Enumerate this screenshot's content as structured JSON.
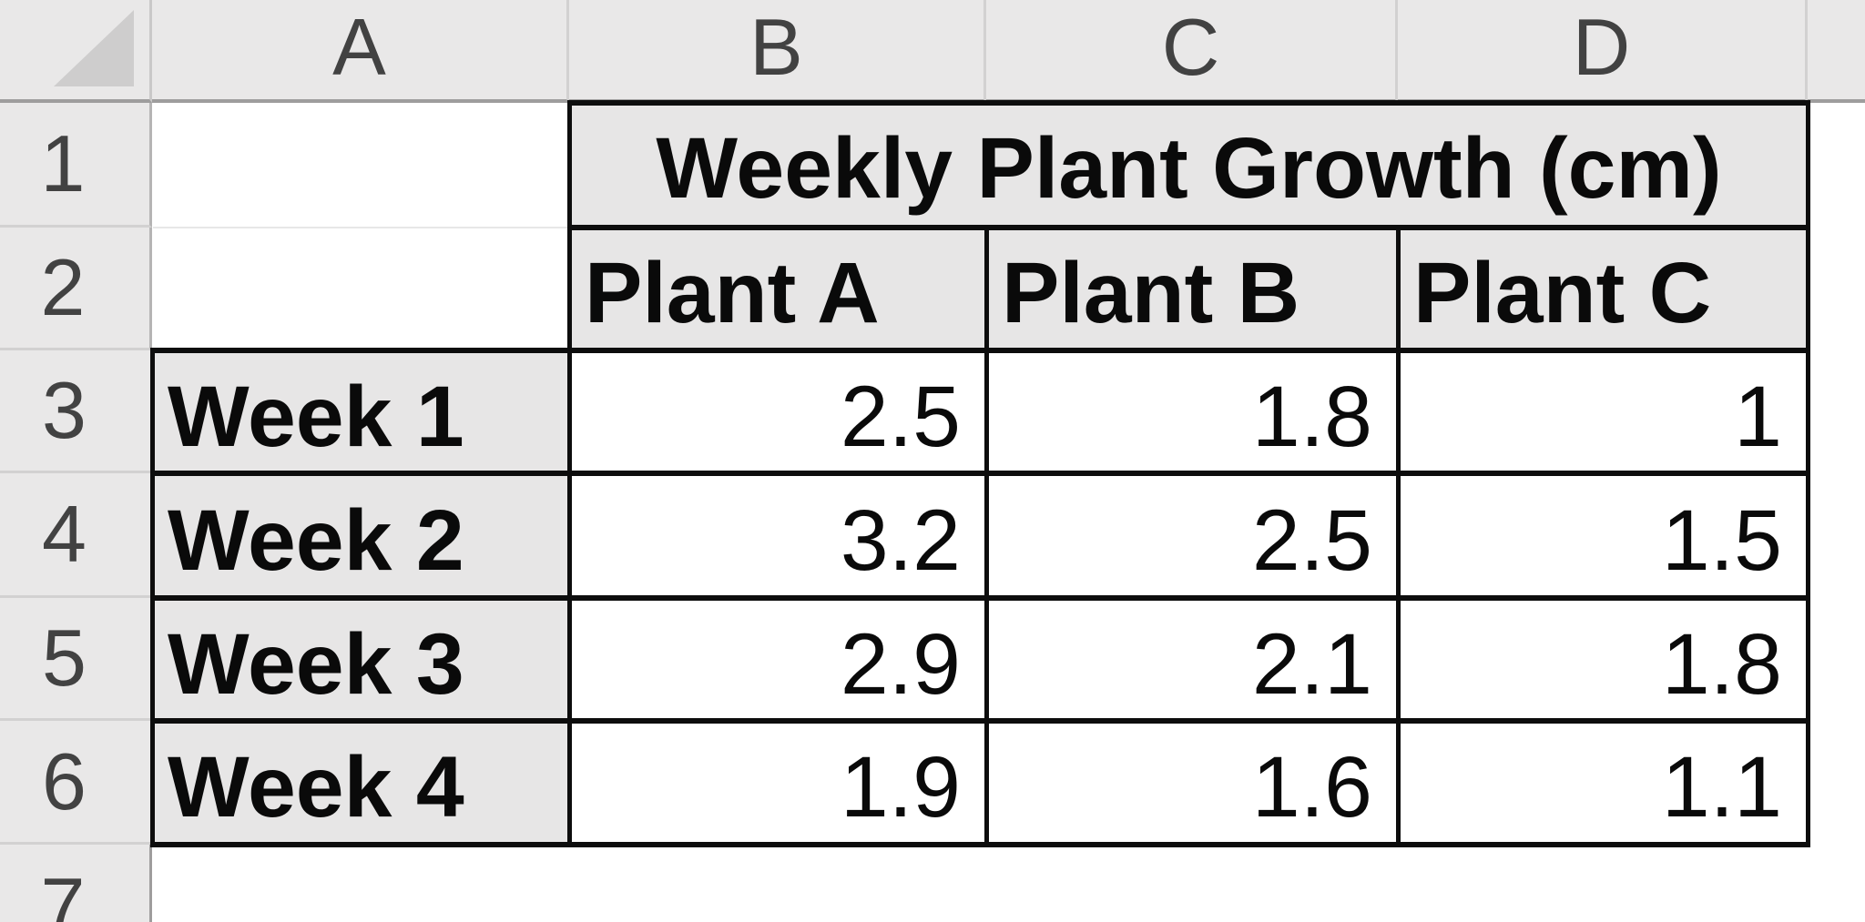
{
  "chrome": {
    "column_headers": [
      "A",
      "B",
      "C",
      "D"
    ],
    "row_headers": [
      "1",
      "2",
      "3",
      "4",
      "5",
      "6",
      "7"
    ]
  },
  "sheet": {
    "title": "Weekly Plant Growth (cm)",
    "column_headers": [
      "Plant A",
      "Plant B",
      "Plant C"
    ],
    "rows": [
      {
        "label": "Week 1",
        "values": [
          "2.5",
          "1.8",
          "1"
        ]
      },
      {
        "label": "Week 2",
        "values": [
          "3.2",
          "2.5",
          "1.5"
        ]
      },
      {
        "label": "Week 3",
        "values": [
          "2.9",
          "2.1",
          "1.8"
        ]
      },
      {
        "label": "Week 4",
        "values": [
          "1.9",
          "1.6",
          "1.1"
        ]
      }
    ]
  },
  "colors": {
    "chrome_background": "#E9E8E8",
    "chrome_text": "#424242",
    "chrome_gridline": "#D2D1D1",
    "chrome_edge_border": "#9E9D9D",
    "select_all_triangle": "#CECDCD",
    "header_cell_fill": "#E7E6E6",
    "table_border": "#0D0D0D",
    "cell_text": "#0A0A0A",
    "data_cell_fill": "#FFFFFF"
  }
}
